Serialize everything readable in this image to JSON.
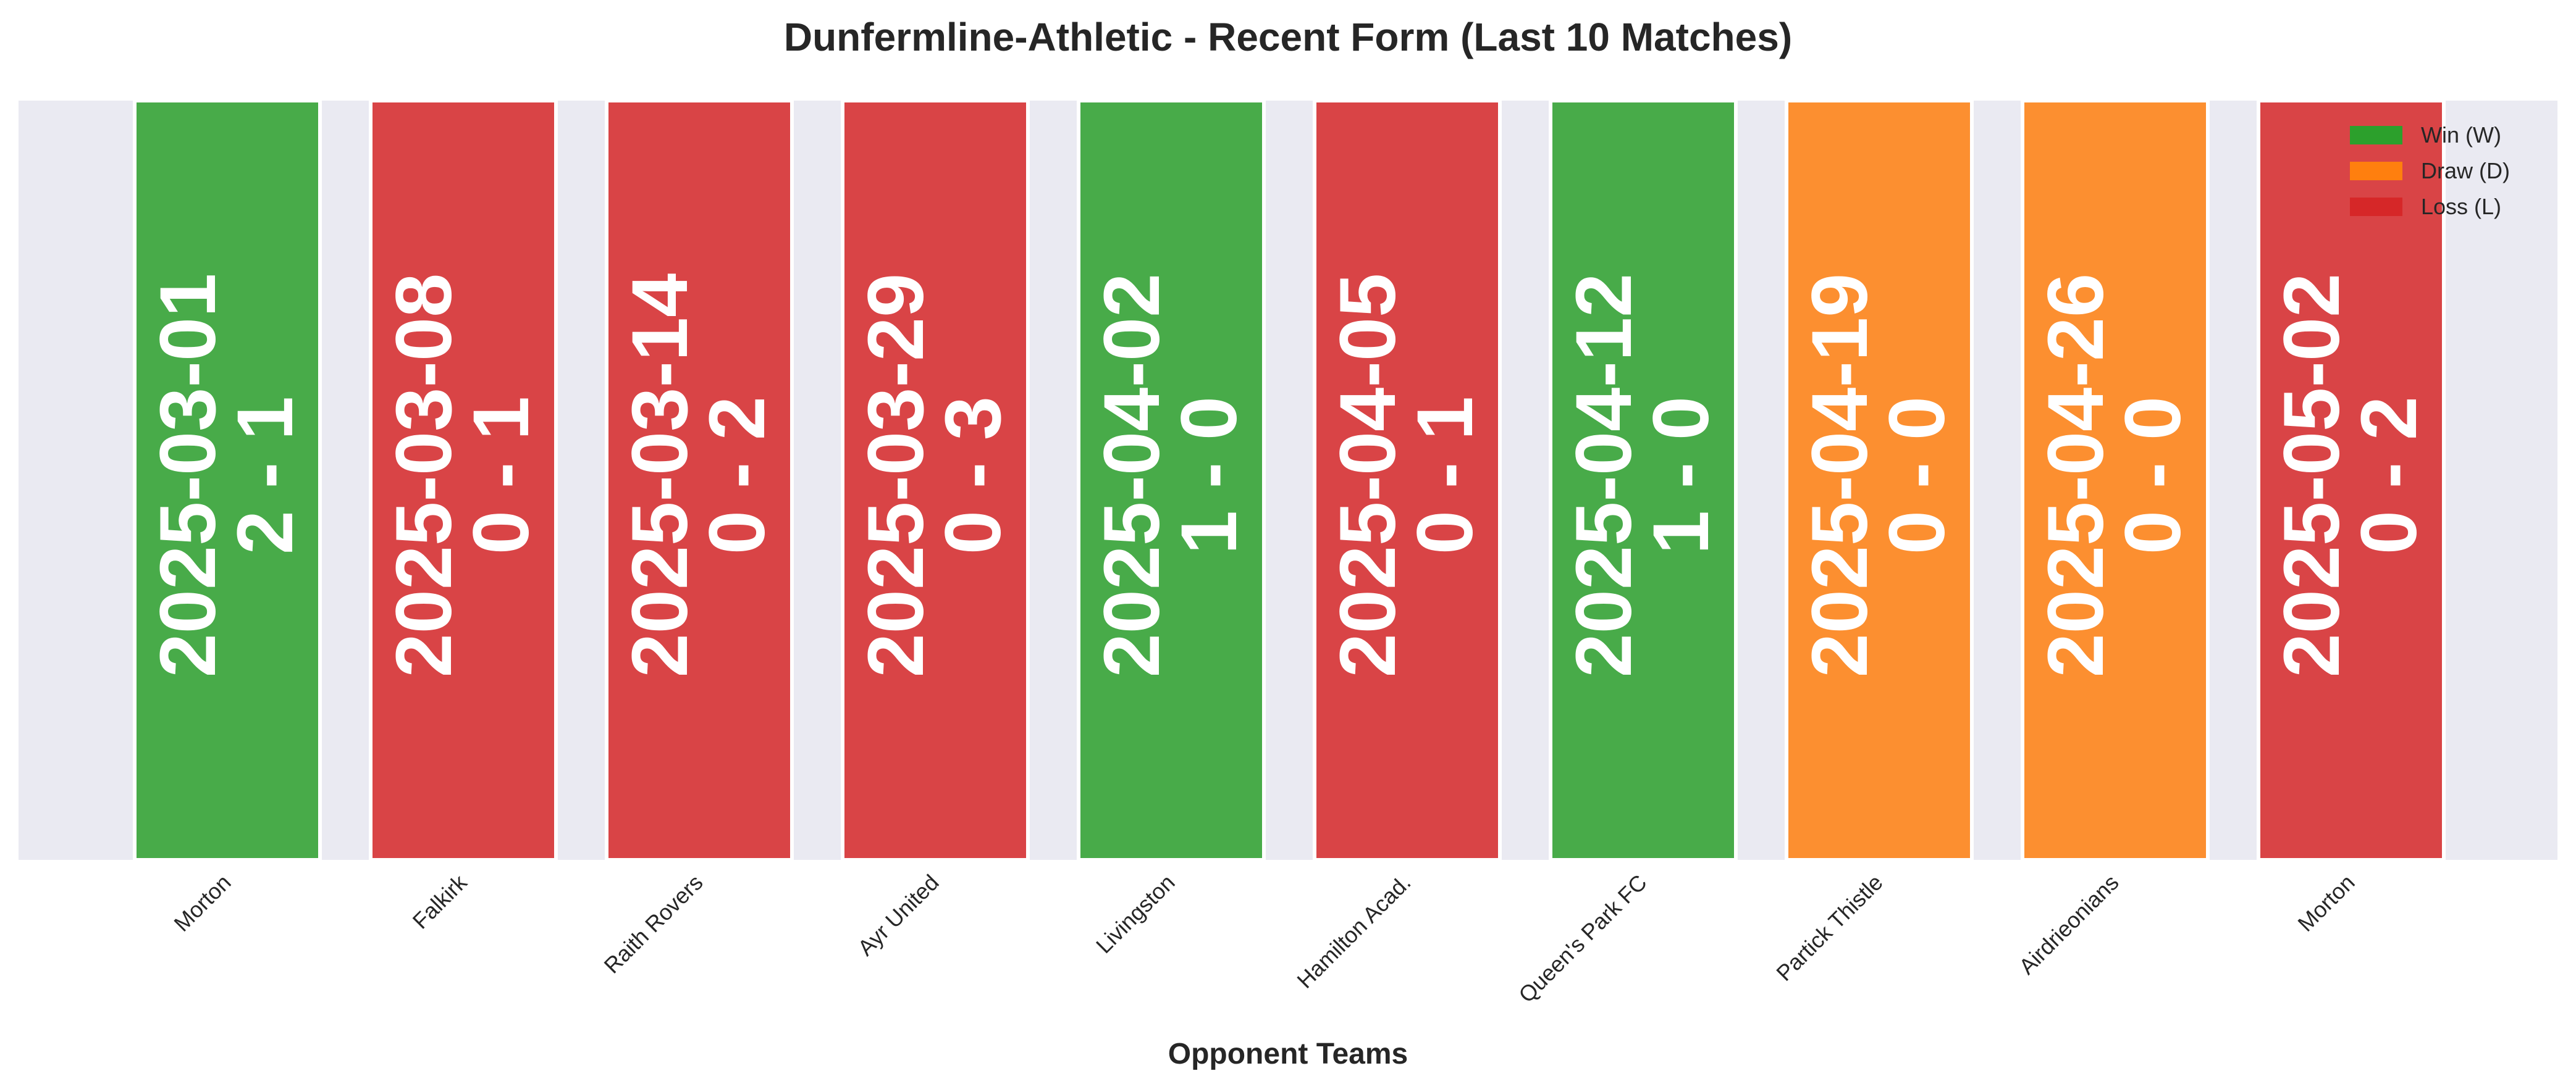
{
  "chart_data": {
    "type": "bar",
    "title": "Dunfermline-Athletic - Recent Form (Last 10 Matches)",
    "xlabel": "Opponent Teams",
    "ylabel": "",
    "categories": [
      "Morton",
      "Falkirk",
      "Raith Rovers",
      "Ayr United",
      "Livingston",
      "Hamilton Acad.",
      "Queen's Park FC",
      "Partick Thistle",
      "Airdrieonians",
      "Morton"
    ],
    "values": [
      1,
      1,
      1,
      1,
      1,
      1,
      1,
      1,
      1,
      1
    ],
    "results": [
      "W",
      "L",
      "L",
      "L",
      "W",
      "L",
      "W",
      "D",
      "D",
      "L"
    ],
    "dates": [
      "2025-03-01",
      "2025-03-08",
      "2025-03-14",
      "2025-03-29",
      "2025-04-02",
      "2025-04-05",
      "2025-04-12",
      "2025-04-19",
      "2025-04-26",
      "2025-05-02"
    ],
    "scores": [
      "2 - 1",
      "0 - 1",
      "0 - 2",
      "0 - 3",
      "1 - 0",
      "0 - 1",
      "1 - 0",
      "0 - 0",
      "0 - 0",
      "0 - 2"
    ],
    "ylim": [
      0,
      1
    ],
    "grid": false,
    "legend_position": "top-right",
    "legend": [
      {
        "key": "W",
        "label": "Win (W)",
        "color": "#2ca02c"
      },
      {
        "key": "D",
        "label": "Draw (D)",
        "color": "#ff7f0e"
      },
      {
        "key": "L",
        "label": "Loss (L)",
        "color": "#d62728"
      }
    ],
    "background_color": "#eaeaf2"
  }
}
